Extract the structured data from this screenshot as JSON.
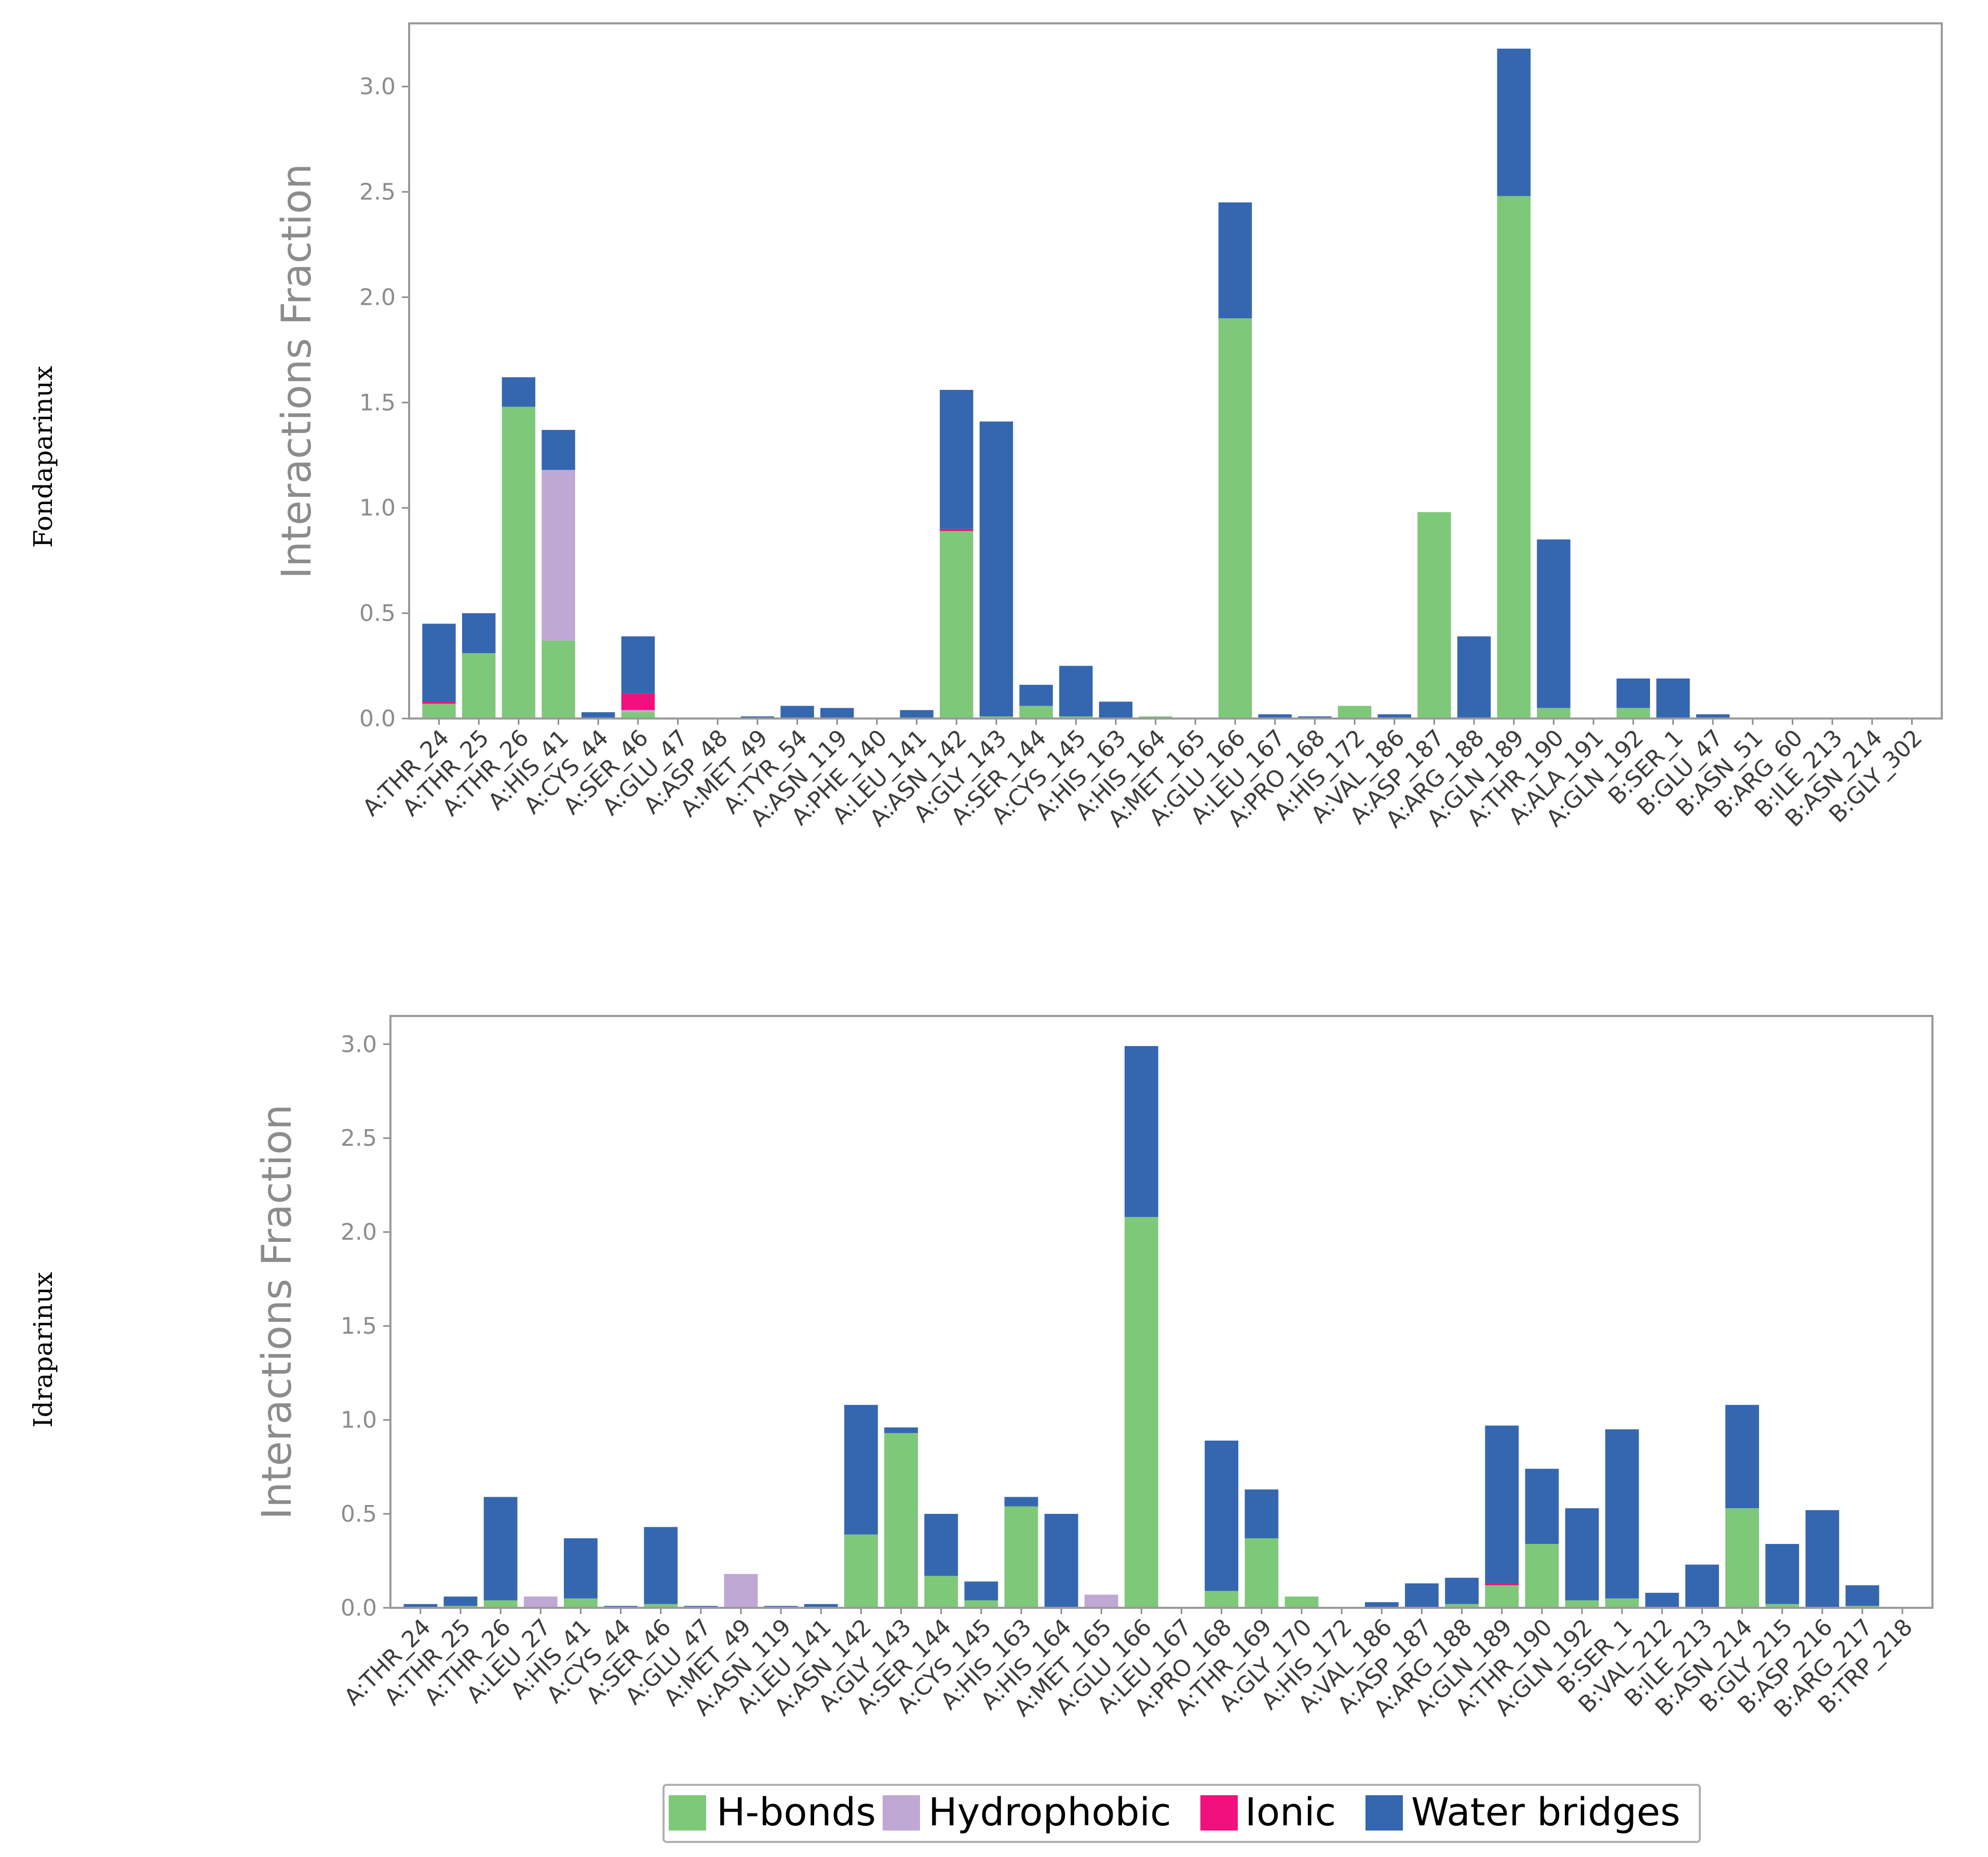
{
  "row_labels": [
    "Fondaparinux",
    "Idraparinux"
  ],
  "series_colors": {
    "H-bonds": "#7ec87a",
    "Hydrophobic": "#bfa8d4",
    "Ionic": "#f0107e",
    "Water bridges": "#3567b0"
  },
  "legend": {
    "entries": [
      {
        "name": "H-bonds",
        "color": "#7ec87a"
      },
      {
        "name": "Hydrophobic",
        "color": "#bfa8d4"
      },
      {
        "name": "Ionic",
        "color": "#f0107e"
      },
      {
        "name": "Water bridges",
        "color": "#3567b0"
      }
    ]
  },
  "chart_data": [
    {
      "type": "bar",
      "stacked": true,
      "panel": "Fondaparinux",
      "title": "",
      "xlabel": "",
      "ylabel": "Interactions Fraction",
      "ylim": [
        0,
        3.3
      ],
      "yticks": [
        0.0,
        0.5,
        1.0,
        1.5,
        2.0,
        2.5,
        3.0
      ],
      "ytick_labels": [
        "0.0",
        "0.5",
        "1.0",
        "1.5",
        "2.0",
        "2.5",
        "3.0"
      ],
      "categories": [
        "A:THR_24",
        "A:THR_25",
        "A:THR_26",
        "A:HIS_41",
        "A:CYS_44",
        "A:SER_46",
        "A:GLU_47",
        "A:ASP_48",
        "A:MET_49",
        "A:TYR_54",
        "A:ASN_119",
        "A:PHE_140",
        "A:LEU_141",
        "A:ASN_142",
        "A:GLY_143",
        "A:SER_144",
        "A:CYS_145",
        "A:HIS_163",
        "A:HIS_164",
        "A:MET_165",
        "A:GLU_166",
        "A:LEU_167",
        "A:PRO_168",
        "A:HIS_172",
        "A:VAL_186",
        "A:ASP_187",
        "A:ARG_188",
        "A:GLN_189",
        "A:THR_190",
        "A:ALA_191",
        "A:GLN_192",
        "B:SER_1",
        "B:GLU_47",
        "B:ASN_51",
        "B:ARG_60",
        "B:ILE_213",
        "B:ASN_214",
        "B:GLY_302"
      ],
      "series": [
        {
          "name": "H-bonds",
          "values": [
            0.07,
            0.31,
            1.48,
            0.37,
            0.0,
            0.03,
            0.0,
            0.0,
            0.0,
            0.0,
            0.0,
            0.0,
            0.0,
            0.89,
            0.01,
            0.06,
            0.01,
            0.0,
            0.01,
            0.0,
            1.9,
            0.0,
            0.0,
            0.06,
            0.0,
            0.98,
            0.0,
            2.48,
            0.05,
            0.0,
            0.05,
            0.0,
            0.0,
            0.0,
            0.0,
            0.0,
            0.0,
            0.0
          ]
        },
        {
          "name": "Hydrophobic",
          "values": [
            0.0,
            0.0,
            0.0,
            0.81,
            0.0,
            0.01,
            0.0,
            0.0,
            0.0,
            0.0,
            0.0,
            0.0,
            0.0,
            0.0,
            0.0,
            0.0,
            0.0,
            0.0,
            0.0,
            0.0,
            0.0,
            0.0,
            0.0,
            0.0,
            0.0,
            0.0,
            0.0,
            0.0,
            0.0,
            0.0,
            0.0,
            0.0,
            0.0,
            0.0,
            0.0,
            0.0,
            0.0,
            0.0
          ]
        },
        {
          "name": "Ionic",
          "values": [
            0.01,
            0.0,
            0.0,
            0.0,
            0.0,
            0.08,
            0.0,
            0.0,
            0.0,
            0.0,
            0.0,
            0.0,
            0.0,
            0.01,
            0.0,
            0.0,
            0.0,
            0.0,
            0.0,
            0.0,
            0.0,
            0.0,
            0.0,
            0.0,
            0.0,
            0.0,
            0.0,
            0.0,
            0.0,
            0.0,
            0.0,
            0.0,
            0.0,
            0.0,
            0.0,
            0.0,
            0.0,
            0.0
          ]
        },
        {
          "name": "Water bridges",
          "values": [
            0.37,
            0.19,
            0.14,
            0.19,
            0.03,
            0.27,
            0.0,
            0.0,
            0.01,
            0.06,
            0.05,
            0.0,
            0.04,
            0.66,
            1.4,
            0.1,
            0.24,
            0.08,
            0.0,
            0.0,
            0.55,
            0.02,
            0.01,
            0.0,
            0.02,
            0.0,
            0.39,
            0.7,
            0.8,
            0.0,
            0.14,
            0.19,
            0.02,
            0.0,
            0.0,
            0.0,
            0.0,
            0.0
          ]
        }
      ]
    },
    {
      "type": "bar",
      "stacked": true,
      "panel": "Idraparinux",
      "title": "",
      "xlabel": "",
      "ylabel": "Interactions Fraction",
      "ylim": [
        0,
        3.15
      ],
      "yticks": [
        0.0,
        0.5,
        1.0,
        1.5,
        2.0,
        2.5,
        3.0
      ],
      "ytick_labels": [
        "0.0",
        "0.5",
        "1.0",
        "1.5",
        "2.0",
        "2.5",
        "3.0"
      ],
      "categories": [
        "A:THR_24",
        "A:THR_25",
        "A:THR_26",
        "A:LEU_27",
        "A:HIS_41",
        "A:CYS_44",
        "A:SER_46",
        "A:GLU_47",
        "A:MET_49",
        "A:ASN_119",
        "A:LEU_141",
        "A:ASN_142",
        "A:GLY_143",
        "A:SER_144",
        "A:CYS_145",
        "A:HIS_163",
        "A:HIS_164",
        "A:MET_165",
        "A:GLU_166",
        "A:LEU_167",
        "A:PRO_168",
        "A:THR_169",
        "A:GLY_170",
        "A:HIS_172",
        "A:VAL_186",
        "A:ASP_187",
        "A:ARG_188",
        "A:GLN_189",
        "A:THR_190",
        "A:GLN_192",
        "B:SER_1",
        "B:VAL_212",
        "B:ILE_213",
        "B:ASN_214",
        "B:GLY_215",
        "B:ASP_216",
        "B:ARG_217",
        "B:TRP_218"
      ],
      "series": [
        {
          "name": "H-bonds",
          "values": [
            0.0,
            0.01,
            0.04,
            0.0,
            0.05,
            0.0,
            0.02,
            0.0,
            0.0,
            0.0,
            0.0,
            0.39,
            0.93,
            0.17,
            0.04,
            0.54,
            0.0,
            0.0,
            2.08,
            0.0,
            0.09,
            0.37,
            0.06,
            0.0,
            0.0,
            0.0,
            0.02,
            0.12,
            0.34,
            0.04,
            0.05,
            0.0,
            0.0,
            0.53,
            0.02,
            0.0,
            0.01,
            0.0
          ]
        },
        {
          "name": "Hydrophobic",
          "values": [
            0.0,
            0.0,
            0.0,
            0.06,
            0.0,
            0.0,
            0.0,
            0.0,
            0.18,
            0.0,
            0.0,
            0.0,
            0.0,
            0.0,
            0.0,
            0.0,
            0.0,
            0.07,
            0.0,
            0.0,
            0.0,
            0.0,
            0.0,
            0.0,
            0.0,
            0.0,
            0.0,
            0.0,
            0.0,
            0.0,
            0.0,
            0.0,
            0.0,
            0.0,
            0.0,
            0.0,
            0.0,
            0.0
          ]
        },
        {
          "name": "Ionic",
          "values": [
            0.0,
            0.0,
            0.0,
            0.0,
            0.0,
            0.0,
            0.0,
            0.0,
            0.0,
            0.0,
            0.0,
            0.0,
            0.0,
            0.0,
            0.0,
            0.0,
            0.0,
            0.0,
            0.0,
            0.0,
            0.0,
            0.0,
            0.0,
            0.0,
            0.0,
            0.0,
            0.0,
            0.01,
            0.0,
            0.0,
            0.0,
            0.0,
            0.0,
            0.0,
            0.0,
            0.0,
            0.0,
            0.0
          ]
        },
        {
          "name": "Water bridges",
          "values": [
            0.02,
            0.05,
            0.55,
            0.0,
            0.32,
            0.01,
            0.41,
            0.01,
            0.0,
            0.01,
            0.02,
            0.69,
            0.03,
            0.33,
            0.1,
            0.05,
            0.5,
            0.0,
            0.91,
            0.0,
            0.8,
            0.26,
            0.0,
            0.0,
            0.03,
            0.13,
            0.14,
            0.84,
            0.4,
            0.49,
            0.9,
            0.08,
            0.23,
            0.55,
            0.32,
            0.52,
            0.11,
            0.0
          ]
        }
      ]
    }
  ]
}
